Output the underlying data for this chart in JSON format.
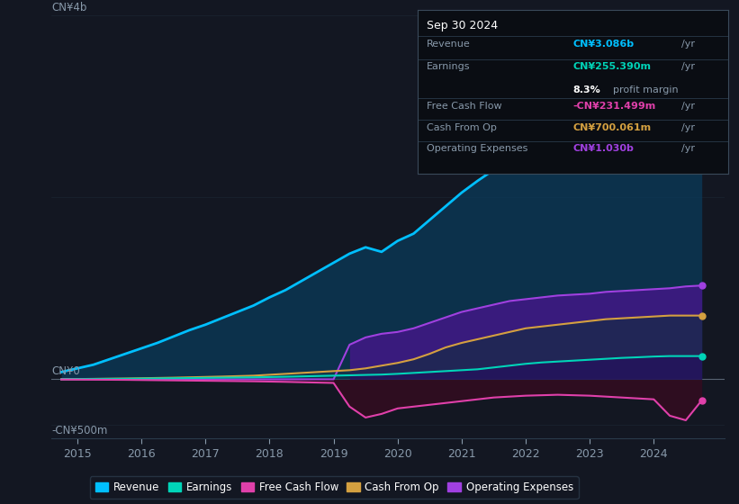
{
  "background_color": "#131722",
  "chart_bg": "#131722",
  "x_ticks": [
    2015,
    2016,
    2017,
    2018,
    2019,
    2020,
    2021,
    2022,
    2023,
    2024
  ],
  "years": [
    2014.75,
    2015.0,
    2015.25,
    2015.5,
    2015.75,
    2016.0,
    2016.25,
    2016.5,
    2016.75,
    2017.0,
    2017.25,
    2017.5,
    2017.75,
    2018.0,
    2018.25,
    2018.5,
    2018.75,
    2019.0,
    2019.25,
    2019.5,
    2019.75,
    2020.0,
    2020.25,
    2020.5,
    2020.75,
    2021.0,
    2021.25,
    2021.5,
    2021.75,
    2022.0,
    2022.25,
    2022.5,
    2022.75,
    2023.0,
    2023.25,
    2023.5,
    2023.75,
    2024.0,
    2024.25,
    2024.5,
    2024.75
  ],
  "revenue": [
    0.08,
    0.12,
    0.16,
    0.22,
    0.28,
    0.34,
    0.4,
    0.47,
    0.54,
    0.6,
    0.67,
    0.74,
    0.81,
    0.9,
    0.98,
    1.08,
    1.18,
    1.28,
    1.38,
    1.45,
    1.4,
    1.52,
    1.6,
    1.75,
    1.9,
    2.05,
    2.18,
    2.3,
    2.42,
    2.55,
    2.65,
    2.72,
    2.8,
    2.88,
    2.93,
    2.98,
    3.02,
    3.05,
    3.07,
    3.09,
    3.086
  ],
  "earnings": [
    0.002,
    0.003,
    0.004,
    0.005,
    0.006,
    0.008,
    0.01,
    0.012,
    0.014,
    0.016,
    0.018,
    0.02,
    0.022,
    0.025,
    0.028,
    0.032,
    0.036,
    0.04,
    0.044,
    0.048,
    0.052,
    0.06,
    0.07,
    0.08,
    0.09,
    0.1,
    0.11,
    0.13,
    0.15,
    0.17,
    0.185,
    0.195,
    0.205,
    0.215,
    0.225,
    0.235,
    0.242,
    0.25,
    0.255,
    0.255,
    0.255
  ],
  "free_cash_flow": [
    -0.002,
    -0.003,
    -0.004,
    -0.005,
    -0.006,
    -0.008,
    -0.01,
    -0.012,
    -0.014,
    -0.016,
    -0.018,
    -0.02,
    -0.022,
    -0.025,
    -0.028,
    -0.032,
    -0.036,
    -0.04,
    -0.3,
    -0.42,
    -0.38,
    -0.32,
    -0.3,
    -0.28,
    -0.26,
    -0.24,
    -0.22,
    -0.2,
    -0.19,
    -0.18,
    -0.175,
    -0.17,
    -0.175,
    -0.18,
    -0.19,
    -0.2,
    -0.21,
    -0.22,
    -0.4,
    -0.45,
    -0.231
  ],
  "cash_from_op": [
    0.002,
    0.003,
    0.005,
    0.007,
    0.009,
    0.012,
    0.015,
    0.018,
    0.022,
    0.026,
    0.03,
    0.035,
    0.04,
    0.05,
    0.06,
    0.07,
    0.08,
    0.09,
    0.1,
    0.12,
    0.15,
    0.18,
    0.22,
    0.28,
    0.35,
    0.4,
    0.44,
    0.48,
    0.52,
    0.56,
    0.58,
    0.6,
    0.62,
    0.64,
    0.66,
    0.67,
    0.68,
    0.69,
    0.7,
    0.7,
    0.7
  ],
  "operating_expenses": [
    0.0,
    0.0,
    0.0,
    0.0,
    0.0,
    0.0,
    0.0,
    0.0,
    0.0,
    0.0,
    0.0,
    0.0,
    0.0,
    0.0,
    0.0,
    0.0,
    0.0,
    0.0,
    0.38,
    0.46,
    0.5,
    0.52,
    0.56,
    0.62,
    0.68,
    0.74,
    0.78,
    0.82,
    0.86,
    0.88,
    0.9,
    0.92,
    0.93,
    0.94,
    0.96,
    0.97,
    0.98,
    0.99,
    1.0,
    1.02,
    1.03
  ],
  "revenue_color": "#00bfff",
  "earnings_color": "#00d4b8",
  "free_cash_flow_color": "#e040aa",
  "cash_from_op_color": "#d4a040",
  "operating_expenses_color": "#a040e0",
  "revenue_fill_color": "#0a3a5a",
  "fcf_fill_color": "#3a0a20",
  "op_exp_fill_color": "#2a1060",
  "grid_color": "#1e2a38",
  "zero_line_color": "#8899aa",
  "border_color": "#2a3a4a",
  "text_color": "#8899aa",
  "info_box": {
    "date": "Sep 30 2024",
    "revenue_label": "Revenue",
    "revenue_val": "CN¥3.086b",
    "revenue_color": "#00bfff",
    "earnings_label": "Earnings",
    "earnings_val": "CN¥255.390m",
    "earnings_color": "#00d4b8",
    "profit_margin": "8.3%",
    "fcf_label": "Free Cash Flow",
    "fcf_val": "-CN¥231.499m",
    "fcf_color": "#e040aa",
    "cfop_label": "Cash From Op",
    "cfop_val": "CN¥700.061m",
    "cfop_color": "#d4a040",
    "opex_label": "Operating Expenses",
    "opex_val": "CN¥1.030b",
    "opex_color": "#a040e0"
  },
  "legend": [
    {
      "label": "Revenue",
      "color": "#00bfff"
    },
    {
      "label": "Earnings",
      "color": "#00d4b8"
    },
    {
      "label": "Free Cash Flow",
      "color": "#e040aa"
    },
    {
      "label": "Cash From Op",
      "color": "#d4a040"
    },
    {
      "label": "Operating Expenses",
      "color": "#a040e0"
    }
  ],
  "ylim": [
    -0.65,
    4.0
  ],
  "xlim": [
    2014.6,
    2025.1
  ]
}
